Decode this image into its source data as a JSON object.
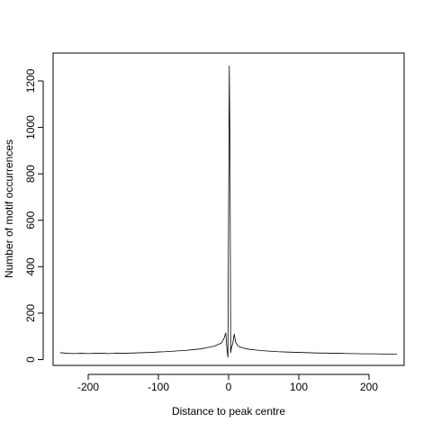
{
  "chart_data": {
    "type": "line",
    "title": "",
    "xlabel": "Distance to peak centre",
    "ylabel": "Number of motif occurrences",
    "xlim": [
      -250,
      250
    ],
    "ylim": [
      -25,
      1320
    ],
    "xticks": [
      -200,
      -100,
      0,
      100,
      200
    ],
    "xtick_labels": [
      "-200",
      "-100",
      "0",
      "100",
      "200"
    ],
    "yticks": [
      0,
      200,
      400,
      600,
      800,
      1000,
      1200
    ],
    "ytick_labels": [
      "0",
      "200",
      "400",
      "600",
      "800",
      "1000",
      "1200"
    ],
    "grid": false,
    "legend": "none",
    "series": [
      {
        "color": "#000000",
        "points": [
          [
            -240,
            30
          ],
          [
            -230,
            27
          ],
          [
            -220,
            26
          ],
          [
            -210,
            27
          ],
          [
            -200,
            26
          ],
          [
            -190,
            27
          ],
          [
            -180,
            27
          ],
          [
            -170,
            26
          ],
          [
            -160,
            28
          ],
          [
            -150,
            27
          ],
          [
            -140,
            28
          ],
          [
            -130,
            29
          ],
          [
            -120,
            30
          ],
          [
            -110,
            31
          ],
          [
            -100,
            33
          ],
          [
            -90,
            34
          ],
          [
            -80,
            36
          ],
          [
            -70,
            38
          ],
          [
            -60,
            40
          ],
          [
            -50,
            43
          ],
          [
            -40,
            46
          ],
          [
            -30,
            52
          ],
          [
            -20,
            58
          ],
          [
            -15,
            65
          ],
          [
            -10,
            72
          ],
          [
            -6,
            95
          ],
          [
            -4,
            115
          ],
          [
            -3,
            70
          ],
          [
            -2,
            35
          ],
          [
            -1,
            10
          ],
          [
            0,
            640
          ],
          [
            1,
            1265
          ],
          [
            2,
            900
          ],
          [
            3,
            30
          ],
          [
            4,
            50
          ],
          [
            6,
            70
          ],
          [
            8,
            110
          ],
          [
            10,
            75
          ],
          [
            13,
            60
          ],
          [
            16,
            55
          ],
          [
            20,
            50
          ],
          [
            30,
            44
          ],
          [
            40,
            41
          ],
          [
            50,
            38
          ],
          [
            60,
            36
          ],
          [
            70,
            34
          ],
          [
            80,
            33
          ],
          [
            90,
            32
          ],
          [
            100,
            31
          ],
          [
            110,
            30
          ],
          [
            120,
            29
          ],
          [
            130,
            28
          ],
          [
            140,
            28
          ],
          [
            150,
            27
          ],
          [
            160,
            27
          ],
          [
            170,
            26
          ],
          [
            180,
            26
          ],
          [
            190,
            25
          ],
          [
            200,
            25
          ],
          [
            210,
            25
          ],
          [
            220,
            24
          ],
          [
            230,
            24
          ],
          [
            240,
            23
          ]
        ]
      }
    ]
  }
}
